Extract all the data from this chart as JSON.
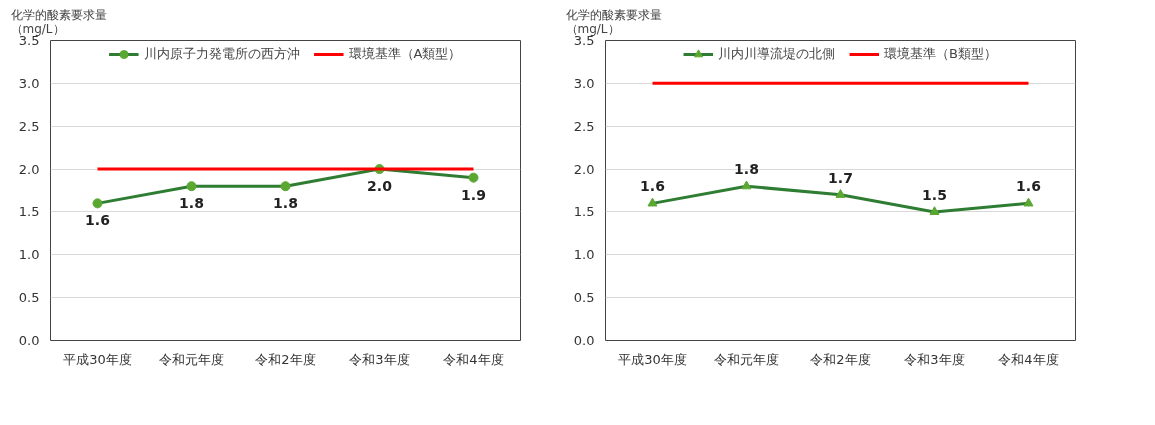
{
  "chart_data": [
    {
      "type": "line",
      "ylabel": "化学的酸素要求量（mg/L）",
      "categories": [
        "平成30年度",
        "令和元年度",
        "令和2年度",
        "令和3年度",
        "令和4年度"
      ],
      "ylim": [
        0,
        3.5
      ],
      "yticks": [
        {
          "value": 0,
          "label": "0.0"
        },
        0.5,
        {
          "value": 1,
          "label": "1.0"
        },
        1.5,
        {
          "value": 2,
          "label": "2.0"
        },
        2.5,
        {
          "value": 3,
          "label": "3.0"
        },
        3.5
      ],
      "grid": "y",
      "legend": "top",
      "series": [
        {
          "name": "川内原子力発電所の西方沖",
          "color": "#2e7d32",
          "marker": "circle",
          "values": [
            1.6,
            1.8,
            1.8,
            2.0,
            1.9
          ],
          "value_labels": [
            "1.6",
            "1.8",
            "1.8",
            "2.0",
            "1.9"
          ]
        },
        {
          "name": "環境基準（A類型）",
          "color": "#ff0000",
          "marker": "none",
          "values": [
            2.0,
            2.0,
            2.0,
            2.0,
            2.0
          ]
        }
      ]
    },
    {
      "type": "line",
      "ylabel": "化学的酸素要求量（mg/L）",
      "categories": [
        "平成30年度",
        "令和元年度",
        "令和2年度",
        "令和3年度",
        "令和4年度"
      ],
      "ylim": [
        0,
        3.5
      ],
      "yticks": [
        {
          "value": 0,
          "label": "0.0"
        },
        0.5,
        {
          "value": 1,
          "label": "1.0"
        },
        1.5,
        {
          "value": 2,
          "label": "2.0"
        },
        2.5,
        {
          "value": 3,
          "label": "3.0"
        },
        3.5
      ],
      "grid": "y",
      "legend": "top",
      "series": [
        {
          "name": "川内川導流堤の北側",
          "color": "#2e7d32",
          "marker": "triangle",
          "values": [
            1.6,
            1.8,
            1.7,
            1.5,
            1.6
          ],
          "value_labels": [
            "1.6",
            "1.8",
            "1.7",
            "1.5",
            "1.6"
          ]
        },
        {
          "name": "環境基準（B類型）",
          "color": "#ff0000",
          "marker": "none",
          "values": [
            3.0,
            3.0,
            3.0,
            3.0,
            3.0
          ]
        }
      ]
    }
  ]
}
